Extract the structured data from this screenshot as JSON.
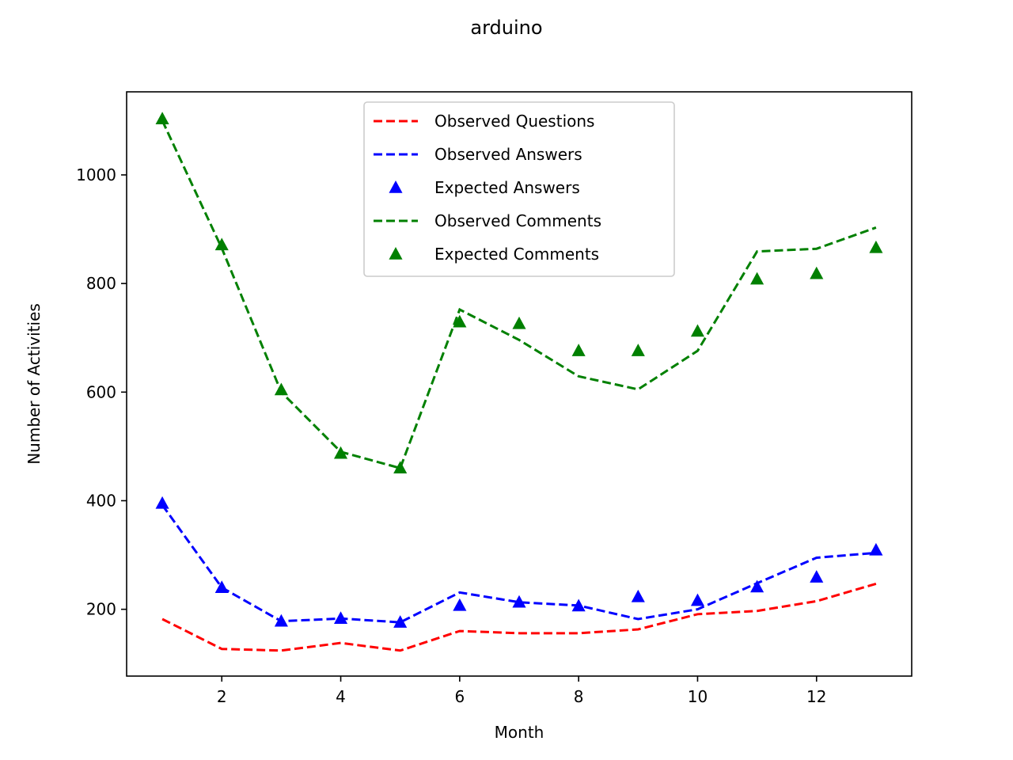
{
  "chart_data": {
    "type": "line",
    "title": "arduino",
    "xlabel": "Month",
    "ylabel": "Number of Activities",
    "xlim": [
      0.4,
      13.6
    ],
    "ylim": [
      77,
      1153
    ],
    "xticks": [
      2,
      4,
      6,
      8,
      10,
      12
    ],
    "yticks": [
      200,
      400,
      600,
      800,
      1000
    ],
    "grid": false,
    "legend_position": "upper-center",
    "x": [
      1,
      2,
      3,
      4,
      5,
      6,
      7,
      8,
      9,
      10,
      11,
      12,
      13
    ],
    "series": [
      {
        "name": "Observed Questions",
        "style": "dashed-line",
        "color": "#ff0000",
        "values": [
          182,
          127,
          124,
          138,
          124,
          160,
          156,
          156,
          163,
          191,
          197,
          215,
          247
        ]
      },
      {
        "name": "Observed Answers",
        "style": "dashed-line",
        "color": "#0000ff",
        "values": [
          392,
          240,
          178,
          183,
          176,
          231,
          213,
          207,
          182,
          200,
          248,
          295,
          304
        ]
      },
      {
        "name": "Expected Answers",
        "style": "triangle-marker",
        "color": "#0000ff",
        "values": [
          395,
          240,
          178,
          183,
          176,
          207,
          213,
          206,
          223,
          216,
          241,
          259,
          309
        ]
      },
      {
        "name": "Observed Comments",
        "style": "dashed-line",
        "color": "#008000",
        "values": [
          1100,
          865,
          600,
          490,
          460,
          752,
          696,
          629,
          605,
          676,
          859,
          864,
          903
        ]
      },
      {
        "name": "Expected Comments",
        "style": "triangle-marker",
        "color": "#008000",
        "values": [
          1103,
          871,
          604,
          487,
          460,
          729,
          726,
          676,
          676,
          712,
          808,
          818,
          866
        ]
      }
    ]
  }
}
